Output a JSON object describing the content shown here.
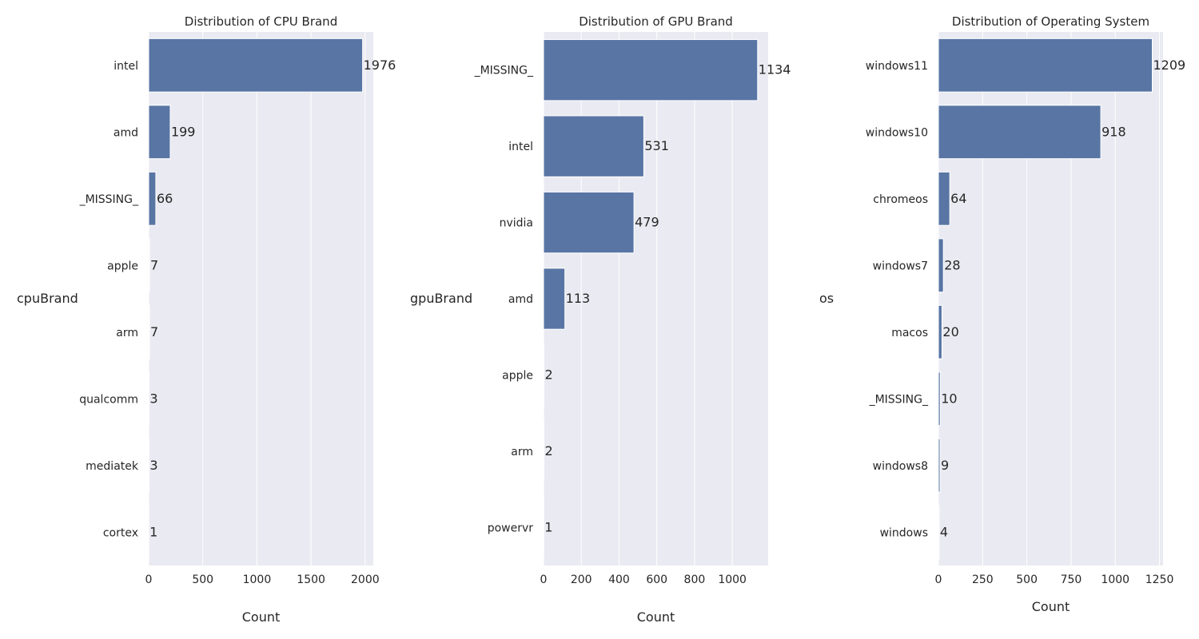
{
  "colors": {
    "bar": "#5875a4",
    "panel": "#eaeaf2",
    "grid": "#ffffff",
    "text": "#262626"
  },
  "chart_data": [
    {
      "type": "bar",
      "orientation": "horizontal",
      "title": "Distribution of CPU Brand",
      "xlabel": "Count",
      "ylabel": "cpuBrand",
      "categories": [
        "intel",
        "amd",
        "_MISSING_",
        "apple",
        "arm",
        "qualcomm",
        "mediatek",
        "cortex"
      ],
      "values": [
        1976,
        199,
        66,
        7,
        7,
        3,
        3,
        1
      ],
      "data_labels": [
        "1976",
        "199",
        "66",
        "7",
        "7",
        "3",
        "3",
        "1"
      ],
      "xticks": [
        0,
        500,
        1000,
        1500,
        2000
      ],
      "xtick_labels": [
        "0",
        "500",
        "1000",
        "1500",
        "2000"
      ],
      "xlim": [
        0,
        2075
      ],
      "grid": true
    },
    {
      "type": "bar",
      "orientation": "horizontal",
      "title": "Distribution of GPU Brand",
      "xlabel": "Count",
      "ylabel": "gpuBrand",
      "categories": [
        "_MISSING_",
        "intel",
        "nvidia",
        "amd",
        "apple",
        "arm",
        "powervr"
      ],
      "values": [
        1134,
        531,
        479,
        113,
        2,
        2,
        1
      ],
      "data_labels": [
        "1134",
        "531",
        "479",
        "113",
        "2",
        "2",
        "1"
      ],
      "xticks": [
        0,
        200,
        400,
        600,
        800,
        1000
      ],
      "xtick_labels": [
        "0",
        "200",
        "400",
        "600",
        "800",
        "1000"
      ],
      "xlim": [
        0,
        1190
      ],
      "grid": true
    },
    {
      "type": "bar",
      "orientation": "horizontal",
      "title": "Distribution of Operating System",
      "xlabel": "Count",
      "ylabel": "os",
      "categories": [
        "windows11",
        "windows10",
        "chromeos",
        "windows7",
        "macos",
        "_MISSING_",
        "windows8",
        "windows"
      ],
      "values": [
        1209,
        918,
        64,
        28,
        20,
        10,
        9,
        4
      ],
      "data_labels": [
        "1209",
        "918",
        "64",
        "28",
        "20",
        "10",
        "9",
        "4"
      ],
      "xticks": [
        0,
        250,
        500,
        750,
        1000,
        1250
      ],
      "xtick_labels": [
        "0",
        "250",
        "500",
        "750",
        "1000",
        "1250"
      ],
      "xlim": [
        0,
        1270
      ],
      "grid": true
    }
  ]
}
